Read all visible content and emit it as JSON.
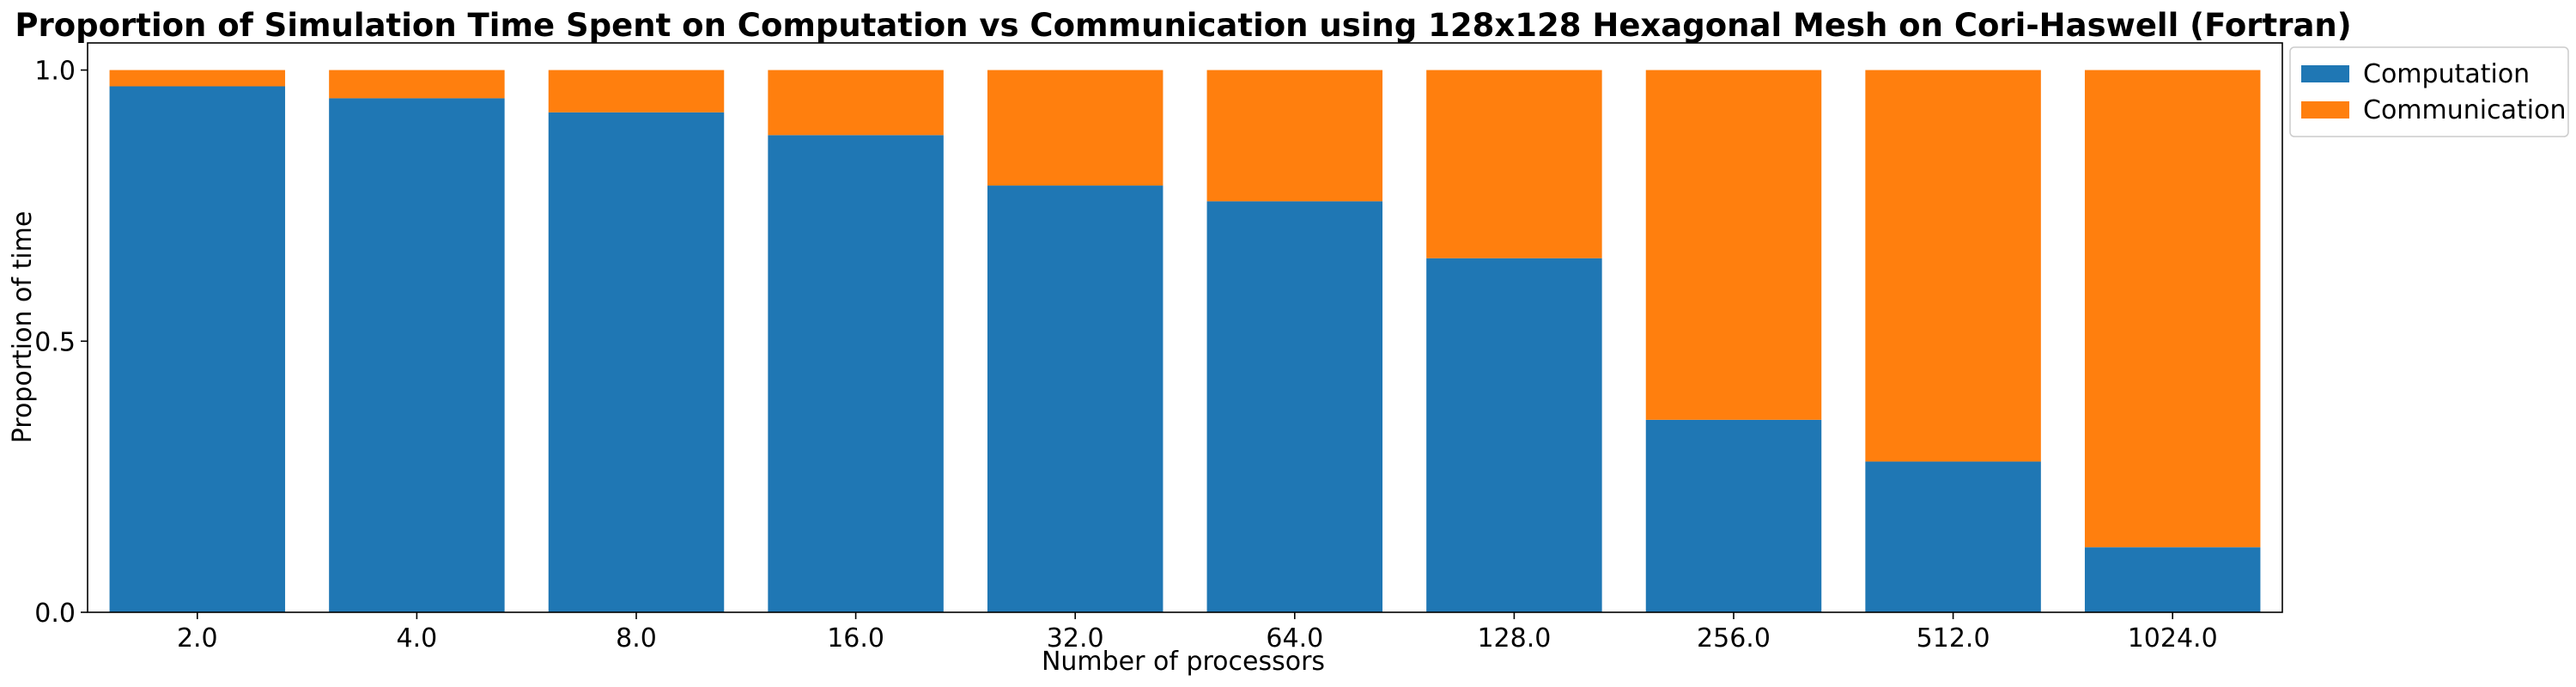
{
  "chart_data": {
    "type": "bar",
    "stacked": true,
    "title": "Proportion of Simulation Time Spent on Computation vs Communication using 128x128 Hexagonal Mesh on Cori-Haswell (Fortran)",
    "xlabel": "Number of processors",
    "ylabel": "Proportion of time",
    "categories": [
      "2.0",
      "4.0",
      "8.0",
      "16.0",
      "32.0",
      "64.0",
      "128.0",
      "256.0",
      "512.0",
      "1024.0"
    ],
    "series": [
      {
        "name": "Computation",
        "color": "#1f77b4",
        "values": [
          0.97,
          0.948,
          0.922,
          0.88,
          0.787,
          0.758,
          0.653,
          0.355,
          0.278,
          0.12
        ]
      },
      {
        "name": "Communication",
        "color": "#ff7f0e",
        "values": [
          0.03,
          0.052,
          0.078,
          0.12,
          0.213,
          0.242,
          0.347,
          0.645,
          0.722,
          0.88
        ]
      }
    ],
    "ylim": [
      0,
      1.05
    ],
    "yticks": [
      "0.0",
      "0.5",
      "1.0"
    ],
    "grid": false,
    "legend_position": "outside upper right"
  }
}
